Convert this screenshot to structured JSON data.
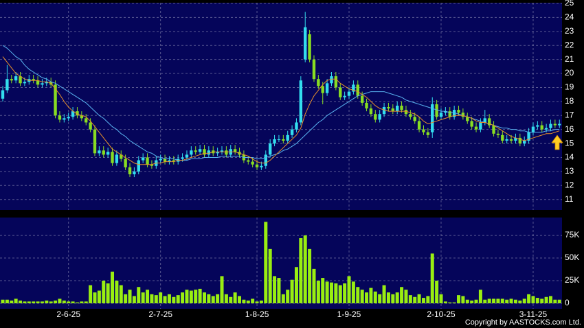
{
  "chart_data": [
    {
      "type": "candlestick",
      "x": [
        null,
        null,
        null,
        null,
        null,
        null,
        null,
        null,
        null,
        null,
        null,
        null,
        null,
        null,
        null,
        "2-6-25",
        null,
        null,
        null,
        null,
        null,
        null,
        null,
        null,
        null,
        null,
        null,
        null,
        null,
        null,
        null,
        null,
        null,
        null,
        null,
        null,
        "2-7-25",
        null,
        null,
        null,
        null,
        null,
        null,
        null,
        null,
        null,
        null,
        null,
        null,
        null,
        null,
        null,
        null,
        null,
        null,
        null,
        null,
        null,
        "1-8-25",
        null,
        null,
        null,
        null,
        null,
        null,
        null,
        null,
        null,
        null,
        null,
        null,
        null,
        null,
        null,
        null,
        null,
        null,
        null,
        null,
        "1-9-25",
        null,
        null,
        null,
        null,
        null,
        null,
        null,
        null,
        null,
        null,
        null,
        null,
        null,
        null,
        null,
        null,
        null,
        null,
        null,
        null,
        "2-10-25",
        null,
        null,
        null,
        null,
        null,
        null,
        null,
        null,
        null,
        null,
        null,
        null,
        null,
        null,
        null,
        null,
        null,
        null,
        null,
        null,
        "3-11-25",
        null,
        null,
        null,
        null,
        null,
        null
      ],
      "open": [
        18.2,
        18.8,
        19.6,
        19.5,
        19.8,
        19.3,
        19.4,
        19.6,
        19.5,
        19.2,
        19.3,
        19.4,
        19.2,
        17.0,
        16.7,
        16.8,
        16.9,
        17.3,
        17.0,
        16.8,
        16.5,
        16.0,
        14.3,
        14.5,
        14.2,
        14.4,
        13.6,
        14.2,
        13.9,
        13.3,
        12.8,
        13.0,
        13.8,
        14.0,
        13.5,
        13.4,
        13.8,
        13.9,
        13.7,
        13.8,
        13.7,
        13.9,
        14.0,
        14.2,
        14.5,
        14.4,
        14.6,
        14.2,
        14.5,
        14.3,
        14.4,
        14.5,
        14.2,
        14.6,
        14.4,
        14.2,
        13.8,
        13.7,
        13.5,
        13.3,
        13.4,
        14.2,
        15.0,
        15.3,
        15.3,
        15.2,
        15.6,
        16.0,
        16.5,
        21.0,
        22.8,
        21.0,
        19.6,
        19.1,
        18.6,
        19.3,
        19.8,
        19.0,
        18.3,
        18.4,
        18.7,
        19.2,
        18.4,
        17.9,
        17.5,
        17.1,
        16.7,
        17.1,
        17.6,
        17.5,
        17.3,
        17.7,
        17.4,
        17.1,
        16.9,
        16.6,
        16.0,
        15.8,
        15.8,
        17.8,
        16.9,
        17.2,
        17.3,
        16.9,
        17.4,
        17.2,
        16.9,
        16.6,
        16.2,
        16.0,
        16.5,
        16.8,
        16.3,
        15.7,
        15.6,
        15.2,
        15.3,
        15.2,
        15.4,
        15.0,
        15.2,
        15.8,
        16.2,
        16.3,
        16.0,
        16.1,
        16.4,
        16.3
      ],
      "high": [
        19.1,
        20.6,
        19.9,
        20.1,
        20.1,
        19.7,
        19.9,
        19.9,
        19.8,
        19.6,
        19.7,
        19.7,
        19.5,
        17.3,
        17.1,
        17.2,
        17.6,
        17.6,
        17.3,
        17.1,
        16.8,
        16.3,
        14.8,
        14.8,
        14.7,
        14.7,
        14.5,
        14.5,
        14.2,
        13.6,
        13.3,
        14.1,
        14.3,
        14.3,
        13.8,
        14.1,
        14.2,
        14.2,
        14.1,
        14.1,
        14.2,
        14.3,
        14.5,
        14.8,
        14.8,
        14.9,
        14.9,
        14.8,
        14.8,
        14.7,
        14.8,
        14.8,
        14.9,
        14.9,
        14.7,
        14.5,
        14.1,
        14.0,
        13.8,
        13.7,
        14.5,
        15.3,
        15.6,
        15.6,
        15.6,
        15.9,
        16.3,
        16.8,
        19.8,
        24.4,
        23.1,
        21.3,
        19.9,
        19.4,
        19.6,
        20.1,
        20.1,
        19.3,
        18.7,
        19.0,
        19.5,
        19.5,
        18.7,
        18.2,
        17.8,
        17.4,
        17.4,
        17.9,
        17.9,
        17.8,
        18.0,
        18.0,
        17.7,
        17.4,
        17.2,
        16.9,
        16.3,
        16.1,
        18.3,
        18.1,
        17.5,
        17.6,
        17.6,
        17.7,
        17.7,
        17.5,
        17.2,
        16.9,
        16.5,
        16.8,
        17.4,
        17.1,
        16.6,
        16.0,
        15.9,
        15.6,
        15.6,
        15.7,
        15.7,
        15.5,
        16.1,
        16.5,
        16.6,
        16.6,
        16.4,
        16.7,
        16.7,
        16.7
      ],
      "low": [
        18.0,
        18.6,
        19.3,
        19.3,
        19.1,
        19.1,
        19.2,
        19.3,
        19.0,
        19.0,
        19.1,
        19.0,
        16.8,
        16.5,
        16.5,
        16.6,
        16.7,
        16.8,
        16.6,
        16.3,
        15.8,
        14.1,
        14.1,
        14.0,
        14.0,
        13.4,
        13.4,
        13.7,
        13.1,
        12.6,
        12.6,
        12.8,
        13.6,
        13.3,
        13.2,
        13.2,
        13.6,
        13.5,
        13.5,
        13.5,
        13.5,
        13.7,
        13.8,
        14.0,
        14.2,
        14.2,
        14.0,
        14.0,
        14.1,
        14.1,
        14.2,
        14.0,
        14.0,
        14.2,
        14.0,
        13.6,
        13.5,
        13.3,
        13.1,
        13.1,
        13.2,
        14.0,
        14.8,
        15.1,
        15.0,
        15.0,
        15.4,
        15.8,
        16.3,
        20.8,
        20.8,
        19.4,
        18.9,
        17.8,
        18.4,
        19.1,
        18.8,
        18.1,
        18.1,
        18.2,
        18.5,
        18.2,
        17.7,
        17.3,
        16.9,
        16.5,
        16.5,
        16.9,
        17.3,
        17.1,
        17.1,
        17.2,
        16.9,
        16.7,
        16.4,
        15.8,
        15.6,
        15.4,
        15.4,
        16.7,
        16.7,
        17.0,
        16.7,
        16.7,
        17.0,
        16.7,
        16.4,
        16.0,
        15.8,
        15.8,
        16.3,
        16.1,
        15.5,
        15.4,
        15.0,
        15.0,
        15.0,
        15.0,
        14.8,
        14.8,
        15.0,
        15.6,
        16.0,
        15.8,
        15.8,
        15.9,
        16.1,
        16.1
      ],
      "close": [
        18.8,
        19.6,
        19.5,
        19.8,
        19.3,
        19.4,
        19.6,
        19.5,
        19.2,
        19.3,
        19.4,
        19.2,
        17.0,
        16.7,
        16.8,
        16.9,
        17.3,
        17.0,
        16.8,
        16.5,
        16.0,
        14.3,
        14.5,
        14.2,
        14.4,
        13.6,
        14.2,
        13.9,
        13.3,
        12.8,
        13.0,
        13.8,
        14.0,
        13.5,
        13.4,
        13.8,
        13.9,
        13.7,
        13.8,
        13.7,
        13.9,
        14.0,
        14.2,
        14.5,
        14.4,
        14.6,
        14.2,
        14.5,
        14.3,
        14.4,
        14.5,
        14.2,
        14.6,
        14.4,
        14.2,
        13.8,
        13.7,
        13.5,
        13.3,
        13.4,
        14.2,
        15.0,
        15.3,
        15.3,
        15.2,
        15.6,
        16.0,
        16.5,
        19.5,
        23.3,
        21.0,
        19.6,
        19.1,
        18.6,
        19.3,
        19.8,
        19.0,
        18.3,
        18.4,
        18.7,
        19.2,
        18.4,
        17.9,
        17.5,
        17.1,
        16.7,
        17.1,
        17.6,
        17.5,
        17.3,
        17.7,
        17.4,
        17.1,
        16.9,
        16.6,
        16.0,
        15.8,
        15.6,
        17.8,
        16.9,
        17.2,
        17.3,
        16.9,
        17.4,
        17.2,
        16.9,
        16.6,
        16.2,
        16.0,
        16.5,
        16.8,
        16.3,
        15.7,
        15.6,
        15.2,
        15.3,
        15.2,
        15.4,
        15.0,
        15.2,
        15.8,
        16.2,
        16.3,
        16.0,
        16.1,
        16.4,
        16.3,
        16.4
      ],
      "up_color": "#33ddee",
      "down_color": "#88dd22",
      "series": [
        {
          "color": "#5ab4f0",
          "values": [
            22.0,
            21.8,
            21.5,
            21.2,
            21.0,
            20.6,
            20.3,
            20.1,
            19.9,
            19.7,
            19.6,
            19.4,
            19.3,
            19.1,
            18.9,
            18.7,
            18.5,
            18.3,
            18.1,
            17.9,
            17.6,
            17.3,
            17.0,
            16.8,
            16.5,
            16.2,
            16.0,
            15.7,
            15.5,
            15.2,
            15.0,
            14.8,
            14.6,
            14.4,
            14.3,
            14.1,
            14.0,
            13.9,
            13.9,
            13.9,
            13.8,
            13.8,
            13.8,
            13.9,
            13.9,
            13.9,
            14.0,
            14.0,
            14.0,
            14.0,
            14.1,
            14.1,
            14.1,
            14.1,
            14.1,
            14.0,
            14.0,
            14.0,
            13.9,
            13.9,
            14.0,
            14.1,
            14.2,
            14.3,
            14.5,
            14.6,
            14.8,
            15.0,
            15.3,
            15.6,
            15.9,
            16.2,
            16.5,
            16.7,
            17.0,
            17.2,
            17.4,
            17.6,
            17.8,
            18.0,
            18.2,
            18.4,
            18.5,
            18.6,
            18.7,
            18.7,
            18.7,
            18.7,
            18.6,
            18.5,
            18.4,
            18.3,
            18.1,
            18.0,
            17.9,
            17.8,
            17.7,
            17.6,
            17.5,
            17.4,
            17.3,
            17.3,
            17.2,
            17.2,
            17.1,
            17.0,
            16.9,
            16.8,
            16.7,
            16.6,
            16.5,
            16.4,
            16.3,
            16.2,
            16.1,
            16.1,
            16.0,
            16.0,
            15.9,
            15.9,
            15.8,
            15.8,
            15.8,
            15.8,
            15.9,
            15.9,
            16.0,
            16.0
          ]
        },
        {
          "color": "#e8902a",
          "values": [
            21.2,
            20.8,
            20.4,
            20.0,
            19.8,
            19.6,
            19.5,
            19.5,
            19.5,
            19.4,
            19.4,
            19.3,
            18.9,
            18.5,
            18.0,
            17.6,
            17.3,
            17.1,
            17.0,
            16.9,
            16.6,
            16.2,
            15.8,
            15.4,
            15.0,
            14.6,
            14.4,
            14.2,
            14.0,
            13.8,
            13.6,
            13.5,
            13.5,
            13.5,
            13.5,
            13.6,
            13.6,
            13.7,
            13.7,
            13.7,
            13.8,
            13.8,
            13.9,
            14.0,
            14.1,
            14.2,
            14.3,
            14.3,
            14.4,
            14.4,
            14.4,
            14.4,
            14.4,
            14.4,
            14.3,
            14.2,
            14.1,
            13.9,
            13.7,
            13.6,
            13.6,
            13.8,
            14.1,
            14.4,
            14.7,
            15.0,
            15.3,
            15.6,
            16.1,
            17.1,
            17.8,
            18.4,
            18.8,
            19.2,
            19.5,
            19.6,
            19.6,
            19.3,
            19.1,
            18.9,
            18.8,
            18.7,
            18.5,
            18.3,
            18.0,
            17.7,
            17.5,
            17.4,
            17.3,
            17.3,
            17.3,
            17.3,
            17.3,
            17.2,
            17.1,
            16.9,
            16.6,
            16.4,
            16.5,
            16.6,
            16.7,
            16.8,
            16.9,
            17.0,
            17.0,
            17.0,
            16.9,
            16.8,
            16.6,
            16.5,
            16.5,
            16.4,
            16.3,
            16.1,
            15.9,
            15.7,
            15.5,
            15.4,
            15.3,
            15.2,
            15.3,
            15.4,
            15.5,
            15.6,
            15.7,
            15.7,
            15.8,
            15.9
          ]
        }
      ],
      "ylim": [
        10.3,
        25
      ],
      "yticks": [
        11,
        12,
        13,
        14,
        15,
        16,
        17,
        18,
        19,
        20,
        21,
        22,
        23,
        24,
        25
      ],
      "grid": true
    },
    {
      "type": "bar",
      "color": "#99ee11",
      "values": [
        4000,
        4000,
        3000,
        5000,
        3000,
        2000,
        2000,
        2000,
        2000,
        2000,
        3000,
        2000,
        3000,
        5000,
        3000,
        2000,
        2000,
        1000,
        2000,
        2000,
        20000,
        12000,
        14000,
        25000,
        22000,
        35000,
        25000,
        20000,
        10000,
        15000,
        8000,
        18000,
        12000,
        15000,
        10000,
        9000,
        12000,
        8000,
        10000,
        7000,
        9000,
        12000,
        15000,
        14000,
        15000,
        16000,
        12000,
        10000,
        8000,
        10000,
        30000,
        10000,
        7000,
        12000,
        8000,
        4000,
        3000,
        5000,
        2000,
        3000,
        90000,
        60000,
        30000,
        28000,
        10000,
        15000,
        26000,
        40000,
        72000,
        75000,
        60000,
        38000,
        25000,
        28000,
        24000,
        23000,
        22000,
        20000,
        22000,
        30000,
        24000,
        18000,
        15000,
        12000,
        17000,
        13000,
        10000,
        20000,
        12000,
        10000,
        12000,
        18000,
        15000,
        9000,
        7000,
        10000,
        6000,
        8000,
        55000,
        25000,
        10000,
        2000,
        1000,
        1000,
        9000,
        8000,
        4000,
        3000,
        4000,
        15000,
        4000,
        5000,
        5000,
        5000,
        5000,
        4000,
        5000,
        4000,
        3000,
        5000,
        10000,
        8000,
        6000,
        5000,
        7000,
        8000,
        4000,
        4000
      ],
      "ylim": [
        0,
        94000
      ],
      "yticks": [
        0,
        {
          "value": 25000,
          "label": "25K"
        },
        {
          "value": 50000,
          "label": "50K"
        },
        {
          "value": 75000,
          "label": "75K"
        }
      ],
      "grid": true
    }
  ],
  "copyright": "Copyright by AASTOCKS.com Ltd."
}
